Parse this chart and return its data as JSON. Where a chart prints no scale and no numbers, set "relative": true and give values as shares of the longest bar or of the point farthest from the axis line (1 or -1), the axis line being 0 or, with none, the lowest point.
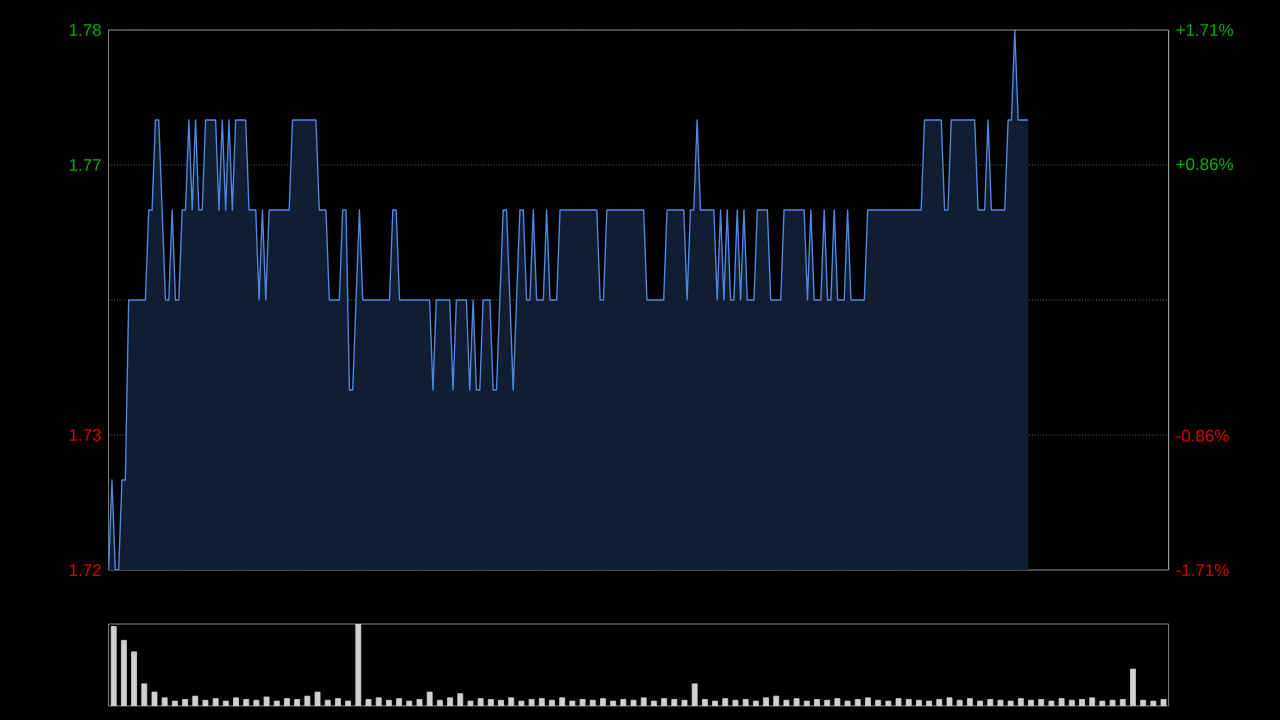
{
  "chart_data": [
    {
      "type": "area",
      "color": "#4f86de",
      "grid": "y",
      "categories": [
        null,
        null,
        null,
        null,
        null,
        null,
        null,
        null,
        null,
        null,
        null,
        null,
        null,
        null,
        null,
        null,
        null,
        null,
        null,
        null,
        null,
        null,
        null,
        null,
        null,
        null,
        null,
        null,
        null,
        null,
        null,
        null,
        null,
        null,
        null,
        null,
        null,
        null,
        null,
        null,
        null,
        null,
        null,
        null,
        null,
        null,
        null,
        null,
        null,
        null,
        null,
        null,
        null,
        null,
        null,
        null,
        null,
        null,
        null,
        null,
        null,
        null,
        null,
        null,
        null,
        null,
        null,
        null,
        null,
        null,
        null,
        null,
        null,
        null,
        null,
        null,
        null,
        null,
        null,
        null,
        null,
        null,
        null,
        null,
        null,
        null,
        null,
        null,
        null,
        null,
        null,
        null,
        null,
        null,
        null,
        null,
        null,
        null,
        null,
        null,
        null,
        null,
        null,
        null,
        null,
        null,
        null,
        null,
        null,
        null,
        null,
        null,
        null,
        null,
        null,
        null,
        null,
        null,
        null,
        null,
        null,
        null,
        null,
        null,
        null,
        null,
        null,
        null,
        null,
        null,
        null,
        null,
        null,
        null,
        null,
        null,
        null,
        null,
        null,
        null,
        null,
        null,
        null,
        null,
        null,
        null,
        null,
        null,
        null,
        null,
        null,
        null,
        null,
        null,
        null,
        null,
        null,
        null,
        null,
        null,
        null,
        null,
        null,
        null,
        null,
        null,
        null,
        null,
        null,
        null,
        null,
        null,
        null,
        null,
        null,
        null,
        null,
        null,
        null,
        null,
        null,
        null,
        null,
        null,
        null,
        null,
        null,
        null,
        null,
        null,
        null,
        null,
        null,
        null,
        null,
        null,
        null,
        null,
        null,
        null,
        null,
        null,
        null,
        null,
        null,
        null,
        null,
        null,
        null,
        null,
        null,
        null,
        null,
        null,
        null,
        null,
        null,
        null,
        null,
        null,
        null,
        null,
        null,
        null,
        null,
        null,
        null,
        null,
        null,
        null,
        null,
        null,
        null,
        null,
        null,
        null,
        null,
        null,
        null,
        null,
        null,
        null,
        null,
        null,
        null,
        null,
        null,
        null,
        null,
        null,
        null,
        null,
        null,
        null,
        null,
        null,
        null,
        null,
        null,
        null,
        null,
        null,
        null,
        null,
        null,
        null,
        null,
        null,
        null,
        null,
        null,
        null,
        null,
        null,
        null,
        null,
        null,
        null,
        null,
        null,
        null,
        null,
        null,
        null,
        null,
        null,
        null,
        null,
        null,
        null,
        null,
        null,
        null,
        null,
        null,
        null,
        null,
        null,
        null,
        null,
        null,
        null,
        null,
        null,
        null,
        null,
        null,
        null,
        null,
        null,
        null,
        null,
        null,
        null,
        null,
        null,
        null,
        null
      ],
      "values": [
        1.72,
        1.73,
        1.72,
        1.72,
        1.73,
        1.73,
        1.75,
        1.75,
        1.75,
        1.75,
        1.75,
        1.75,
        1.76,
        1.76,
        1.77,
        1.77,
        1.76,
        1.75,
        1.75,
        1.76,
        1.75,
        1.75,
        1.76,
        1.76,
        1.77,
        1.76,
        1.77,
        1.76,
        1.76,
        1.77,
        1.77,
        1.77,
        1.77,
        1.76,
        1.77,
        1.76,
        1.77,
        1.76,
        1.77,
        1.77,
        1.77,
        1.77,
        1.76,
        1.76,
        1.76,
        1.75,
        1.76,
        1.75,
        1.76,
        1.76,
        1.76,
        1.76,
        1.76,
        1.76,
        1.76,
        1.77,
        1.77,
        1.77,
        1.77,
        1.77,
        1.77,
        1.77,
        1.77,
        1.76,
        1.76,
        1.76,
        1.75,
        1.75,
        1.75,
        1.75,
        1.76,
        1.76,
        1.74,
        1.74,
        1.75,
        1.76,
        1.75,
        1.75,
        1.75,
        1.75,
        1.75,
        1.75,
        1.75,
        1.75,
        1.75,
        1.76,
        1.76,
        1.75,
        1.75,
        1.75,
        1.75,
        1.75,
        1.75,
        1.75,
        1.75,
        1.75,
        1.75,
        1.74,
        1.75,
        1.75,
        1.75,
        1.75,
        1.75,
        1.74,
        1.75,
        1.75,
        1.75,
        1.75,
        1.74,
        1.75,
        1.74,
        1.74,
        1.75,
        1.75,
        1.75,
        1.74,
        1.74,
        1.75,
        1.76,
        1.76,
        1.75,
        1.74,
        1.75,
        1.76,
        1.76,
        1.75,
        1.75,
        1.76,
        1.75,
        1.75,
        1.75,
        1.76,
        1.75,
        1.75,
        1.75,
        1.76,
        1.76,
        1.76,
        1.76,
        1.76,
        1.76,
        1.76,
        1.76,
        1.76,
        1.76,
        1.76,
        1.76,
        1.75,
        1.75,
        1.76,
        1.76,
        1.76,
        1.76,
        1.76,
        1.76,
        1.76,
        1.76,
        1.76,
        1.76,
        1.76,
        1.76,
        1.75,
        1.75,
        1.75,
        1.75,
        1.75,
        1.75,
        1.76,
        1.76,
        1.76,
        1.76,
        1.76,
        1.76,
        1.75,
        1.76,
        1.76,
        1.77,
        1.76,
        1.76,
        1.76,
        1.76,
        1.76,
        1.75,
        1.76,
        1.75,
        1.76,
        1.75,
        1.75,
        1.76,
        1.75,
        1.76,
        1.75,
        1.75,
        1.75,
        1.76,
        1.76,
        1.76,
        1.76,
        1.75,
        1.75,
        1.75,
        1.75,
        1.76,
        1.76,
        1.76,
        1.76,
        1.76,
        1.76,
        1.76,
        1.75,
        1.76,
        1.75,
        1.75,
        1.75,
        1.76,
        1.75,
        1.75,
        1.76,
        1.75,
        1.75,
        1.75,
        1.76,
        1.75,
        1.75,
        1.75,
        1.75,
        1.75,
        1.76,
        1.76,
        1.76,
        1.76,
        1.76,
        1.76,
        1.76,
        1.76,
        1.76,
        1.76,
        1.76,
        1.76,
        1.76,
        1.76,
        1.76,
        1.76,
        1.76,
        1.77,
        1.77,
        1.77,
        1.77,
        1.77,
        1.77,
        1.76,
        1.76,
        1.77,
        1.77,
        1.77,
        1.77,
        1.77,
        1.77,
        1.77,
        1.77,
        1.76,
        1.76,
        1.76,
        1.77,
        1.76,
        1.76,
        1.76,
        1.76,
        1.76,
        1.77,
        1.77,
        1.78,
        1.77,
        1.77,
        1.77,
        1.77,
        null,
        null,
        null,
        null,
        null,
        null,
        null,
        null,
        null,
        null,
        null,
        null,
        null,
        null,
        null,
        null,
        null,
        null,
        null,
        null,
        null,
        null,
        null,
        null,
        null,
        null,
        null,
        null,
        null,
        null,
        null,
        null,
        null,
        null,
        null,
        null,
        null,
        null,
        null,
        null,
        null,
        null
      ],
      "ylim": [
        1.72,
        1.78
      ],
      "yticks": [
        {
          "value": 1.72,
          "label": "1.72"
        },
        {
          "value": 1.735,
          "label": "1.73"
        },
        {
          "value": 1.75,
          "label": null
        },
        {
          "value": 1.765,
          "label": "1.77"
        },
        {
          "value": 1.78,
          "label": "1.78"
        }
      ],
      "y2lim": [
        -1.71,
        1.71
      ],
      "y2ticks": [
        {
          "value": -1.71,
          "label": "-1.71%"
        },
        {
          "value": -0.86,
          "label": "-0.86%"
        },
        {
          "value": 0,
          "label": null
        },
        {
          "value": 0.86,
          "label": "+0.86%"
        },
        {
          "value": 1.71,
          "label": "+1.71%"
        }
      ]
    },
    {
      "type": "bar",
      "relative": true,
      "color": "#d0d0d0",
      "categories": [
        null,
        null,
        null,
        null,
        null,
        null,
        null,
        null,
        null,
        null,
        null,
        null,
        null,
        null,
        null,
        null,
        null,
        null,
        null,
        null,
        null,
        null,
        null,
        null,
        null,
        null,
        null,
        null,
        null,
        null,
        null,
        null,
        null,
        null,
        null,
        null,
        null,
        null,
        null,
        null,
        null,
        null,
        null,
        null,
        null,
        null,
        null,
        null,
        null,
        null,
        null,
        null,
        null,
        null,
        null,
        null,
        null,
        null,
        null,
        null,
        null,
        null,
        null,
        null,
        null,
        null,
        null,
        null,
        null,
        null,
        null,
        null,
        null,
        null,
        null,
        null,
        null,
        null,
        null,
        null,
        null,
        null,
        null,
        null,
        null,
        null,
        null,
        null,
        null,
        null,
        null,
        null,
        null,
        null,
        null,
        null,
        null,
        null,
        null,
        null,
        null,
        null,
        null,
        null
      ],
      "values": [
        0.97,
        0.8,
        0.66,
        0.27,
        0.17,
        0.1,
        0.06,
        0.08,
        0.12,
        0.07,
        0.09,
        0.06,
        0.1,
        0.08,
        0.07,
        0.11,
        0.06,
        0.09,
        0.08,
        0.12,
        0.17,
        0.07,
        0.09,
        0.06,
        1.0,
        0.08,
        0.1,
        0.07,
        0.09,
        0.06,
        0.08,
        0.17,
        0.07,
        0.1,
        0.15,
        0.06,
        0.09,
        0.08,
        0.07,
        0.1,
        0.06,
        0.08,
        0.09,
        0.07,
        0.1,
        0.06,
        0.08,
        0.07,
        0.09,
        0.06,
        0.08,
        0.07,
        0.1,
        0.06,
        0.09,
        0.08,
        0.07,
        0.27,
        0.08,
        0.06,
        0.09,
        0.07,
        0.08,
        0.06,
        0.1,
        0.12,
        0.07,
        0.09,
        0.06,
        0.08,
        0.07,
        0.09,
        0.06,
        0.08,
        0.1,
        0.07,
        0.06,
        0.09,
        0.08,
        0.07,
        0.06,
        0.08,
        0.1,
        0.07,
        0.09,
        0.06,
        0.08,
        0.07,
        0.06,
        0.09,
        0.07,
        0.08,
        0.06,
        0.09,
        0.07,
        0.08,
        0.1,
        0.06,
        0.07,
        0.08,
        0.45,
        0.07,
        0.06,
        0.08
      ]
    }
  ]
}
